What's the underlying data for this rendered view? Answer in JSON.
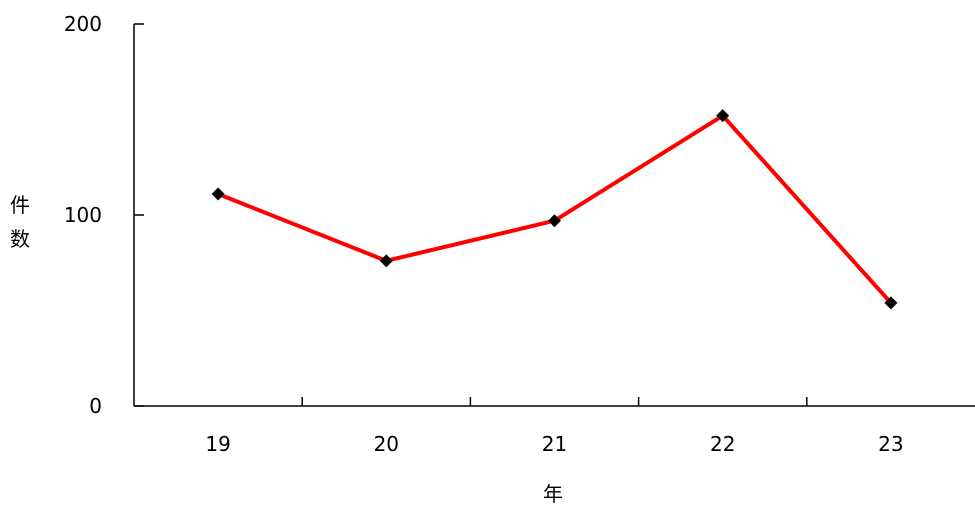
{
  "chart_data": {
    "type": "line",
    "title": "",
    "xlabel": "年",
    "ylabel": "件数",
    "categories": [
      "19",
      "20",
      "21",
      "22",
      "23"
    ],
    "series": [
      {
        "values": [
          111,
          76,
          97,
          152,
          54
        ],
        "color": "#ff0000",
        "marker": "diamond",
        "marker_color": "#000000"
      }
    ],
    "ylim": [
      0,
      200
    ],
    "yticks": [
      "0",
      "100",
      "200"
    ],
    "grid": false,
    "legend": "none"
  }
}
